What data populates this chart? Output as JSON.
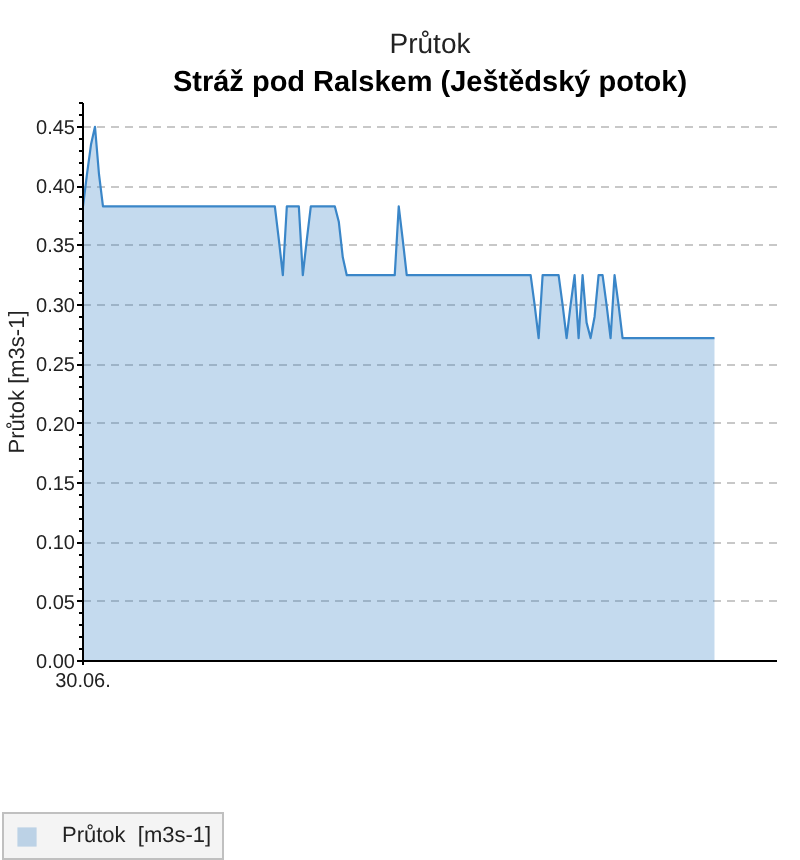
{
  "chart_data": {
    "type": "area",
    "title": "Průtok",
    "subtitle": "Stráž pod Ralskem (Ještědský potok)",
    "ylabel": "Průtok [m3s-1]",
    "categories": [
      "30.06.",
      null,
      null,
      null,
      null,
      null,
      null,
      null,
      null,
      null,
      null,
      null,
      null,
      null,
      null,
      null,
      null,
      null,
      null,
      null,
      null,
      null,
      null,
      null,
      null,
      null,
      null,
      null,
      null,
      null,
      null,
      null,
      null,
      null,
      null,
      null,
      null,
      null,
      null,
      null,
      null,
      null,
      null,
      null,
      null,
      null,
      null,
      null,
      null,
      null,
      null,
      null,
      null,
      null,
      null,
      null,
      null,
      null,
      null,
      null,
      null,
      null,
      null,
      null,
      null,
      null,
      null,
      null,
      null,
      null,
      null,
      null,
      null,
      null,
      null,
      null,
      null,
      null,
      null,
      null,
      null,
      null,
      null,
      null,
      null,
      null,
      null,
      null,
      null,
      null,
      null,
      null,
      null,
      null,
      null,
      null,
      null,
      null,
      null,
      null,
      null,
      null,
      null,
      null,
      null,
      null,
      null,
      null,
      null,
      null,
      null,
      null,
      null,
      null,
      null,
      null,
      null,
      null,
      null,
      null,
      null,
      null,
      null,
      null,
      null,
      null,
      null,
      null,
      null,
      null,
      null,
      null,
      null,
      null,
      null,
      null,
      null,
      null,
      null,
      null,
      null,
      null,
      null,
      null,
      null,
      null,
      null,
      null,
      null,
      null,
      null,
      null,
      null,
      null,
      null,
      null,
      null,
      null,
      null
    ],
    "series": [
      {
        "name": "Průtok  [m3s-1]",
        "color": "#3a86c8",
        "values": [
          0.383,
          0.41,
          0.435,
          0.45,
          0.41,
          0.383,
          0.383,
          0.383,
          0.383,
          0.383,
          0.383,
          0.383,
          0.383,
          0.383,
          0.383,
          0.383,
          0.383,
          0.383,
          0.383,
          0.383,
          0.383,
          0.383,
          0.383,
          0.383,
          0.383,
          0.383,
          0.383,
          0.383,
          0.383,
          0.383,
          0.383,
          0.383,
          0.383,
          0.383,
          0.383,
          0.383,
          0.383,
          0.383,
          0.383,
          0.383,
          0.383,
          0.383,
          0.383,
          0.383,
          0.383,
          0.383,
          0.383,
          0.383,
          0.383,
          0.355,
          0.325,
          0.383,
          0.383,
          0.383,
          0.383,
          0.325,
          0.355,
          0.383,
          0.383,
          0.383,
          0.383,
          0.383,
          0.383,
          0.383,
          0.37,
          0.34,
          0.325,
          0.325,
          0.325,
          0.325,
          0.325,
          0.325,
          0.325,
          0.325,
          0.325,
          0.325,
          0.325,
          0.325,
          0.325,
          0.383,
          0.355,
          0.325,
          0.325,
          0.325,
          0.325,
          0.325,
          0.325,
          0.325,
          0.325,
          0.325,
          0.325,
          0.325,
          0.325,
          0.325,
          0.325,
          0.325,
          0.325,
          0.325,
          0.325,
          0.325,
          0.325,
          0.325,
          0.325,
          0.325,
          0.325,
          0.325,
          0.325,
          0.325,
          0.325,
          0.325,
          0.325,
          0.325,
          0.325,
          0.3,
          0.272,
          0.325,
          0.325,
          0.325,
          0.325,
          0.325,
          0.3,
          0.272,
          0.3,
          0.325,
          0.272,
          0.325,
          0.285,
          0.272,
          0.29,
          0.325,
          0.325,
          0.3,
          0.272,
          0.325,
          0.3,
          0.272,
          0.272,
          0.272,
          0.272,
          0.272,
          0.272,
          0.272,
          0.272,
          0.272,
          0.272,
          0.272,
          0.272,
          0.272,
          0.272,
          0.272,
          0.272,
          0.272,
          0.272,
          0.272,
          0.272,
          0.272,
          0.272,
          0.272,
          0.272
        ]
      }
    ],
    "ylim": [
      0,
      0.47
    ],
    "yticks": [
      {
        "value": 0,
        "label": "0.00"
      },
      {
        "value": 0.01,
        "label": null
      },
      {
        "value": 0.02,
        "label": null
      },
      {
        "value": 0.03,
        "label": null
      },
      {
        "value": 0.04,
        "label": null
      },
      {
        "value": 0.05,
        "label": "0.05"
      },
      {
        "value": 0.06,
        "label": null
      },
      {
        "value": 0.07,
        "label": null
      },
      {
        "value": 0.08,
        "label": null
      },
      {
        "value": 0.09,
        "label": null
      },
      {
        "value": 0.1,
        "label": "0.10"
      },
      {
        "value": 0.11,
        "label": null
      },
      {
        "value": 0.12,
        "label": null
      },
      {
        "value": 0.13,
        "label": null
      },
      {
        "value": 0.14,
        "label": null
      },
      {
        "value": 0.15,
        "label": "0.15"
      },
      {
        "value": 0.16,
        "label": null
      },
      {
        "value": 0.17,
        "label": null
      },
      {
        "value": 0.18,
        "label": null
      },
      {
        "value": 0.19,
        "label": null
      },
      {
        "value": 0.2,
        "label": "0.20"
      },
      {
        "value": 0.21,
        "label": null
      },
      {
        "value": 0.22,
        "label": null
      },
      {
        "value": 0.23,
        "label": null
      },
      {
        "value": 0.24,
        "label": null
      },
      {
        "value": 0.25,
        "label": "0.25"
      },
      {
        "value": 0.26,
        "label": null
      },
      {
        "value": 0.27,
        "label": null
      },
      {
        "value": 0.28,
        "label": null
      },
      {
        "value": 0.29,
        "label": null
      },
      {
        "value": 0.3,
        "label": "0.30"
      },
      {
        "value": 0.31,
        "label": null
      },
      {
        "value": 0.32,
        "label": null
      },
      {
        "value": 0.33,
        "label": null
      },
      {
        "value": 0.34,
        "label": null
      },
      {
        "value": 0.35,
        "label": "0.35"
      },
      {
        "value": 0.36,
        "label": null
      },
      {
        "value": 0.37,
        "label": null
      },
      {
        "value": 0.38,
        "label": null
      },
      {
        "value": 0.39,
        "label": null
      },
      {
        "value": 0.4,
        "label": "0.40"
      },
      {
        "value": 0.41,
        "label": null
      },
      {
        "value": 0.42,
        "label": null
      },
      {
        "value": 0.43,
        "label": null
      },
      {
        "value": 0.44,
        "label": null
      },
      {
        "value": 0.45,
        "label": "0.45"
      },
      {
        "value": 0.46,
        "label": null
      },
      {
        "value": 0.47,
        "label": null
      }
    ],
    "grid": "y",
    "legend": "bottom left"
  }
}
